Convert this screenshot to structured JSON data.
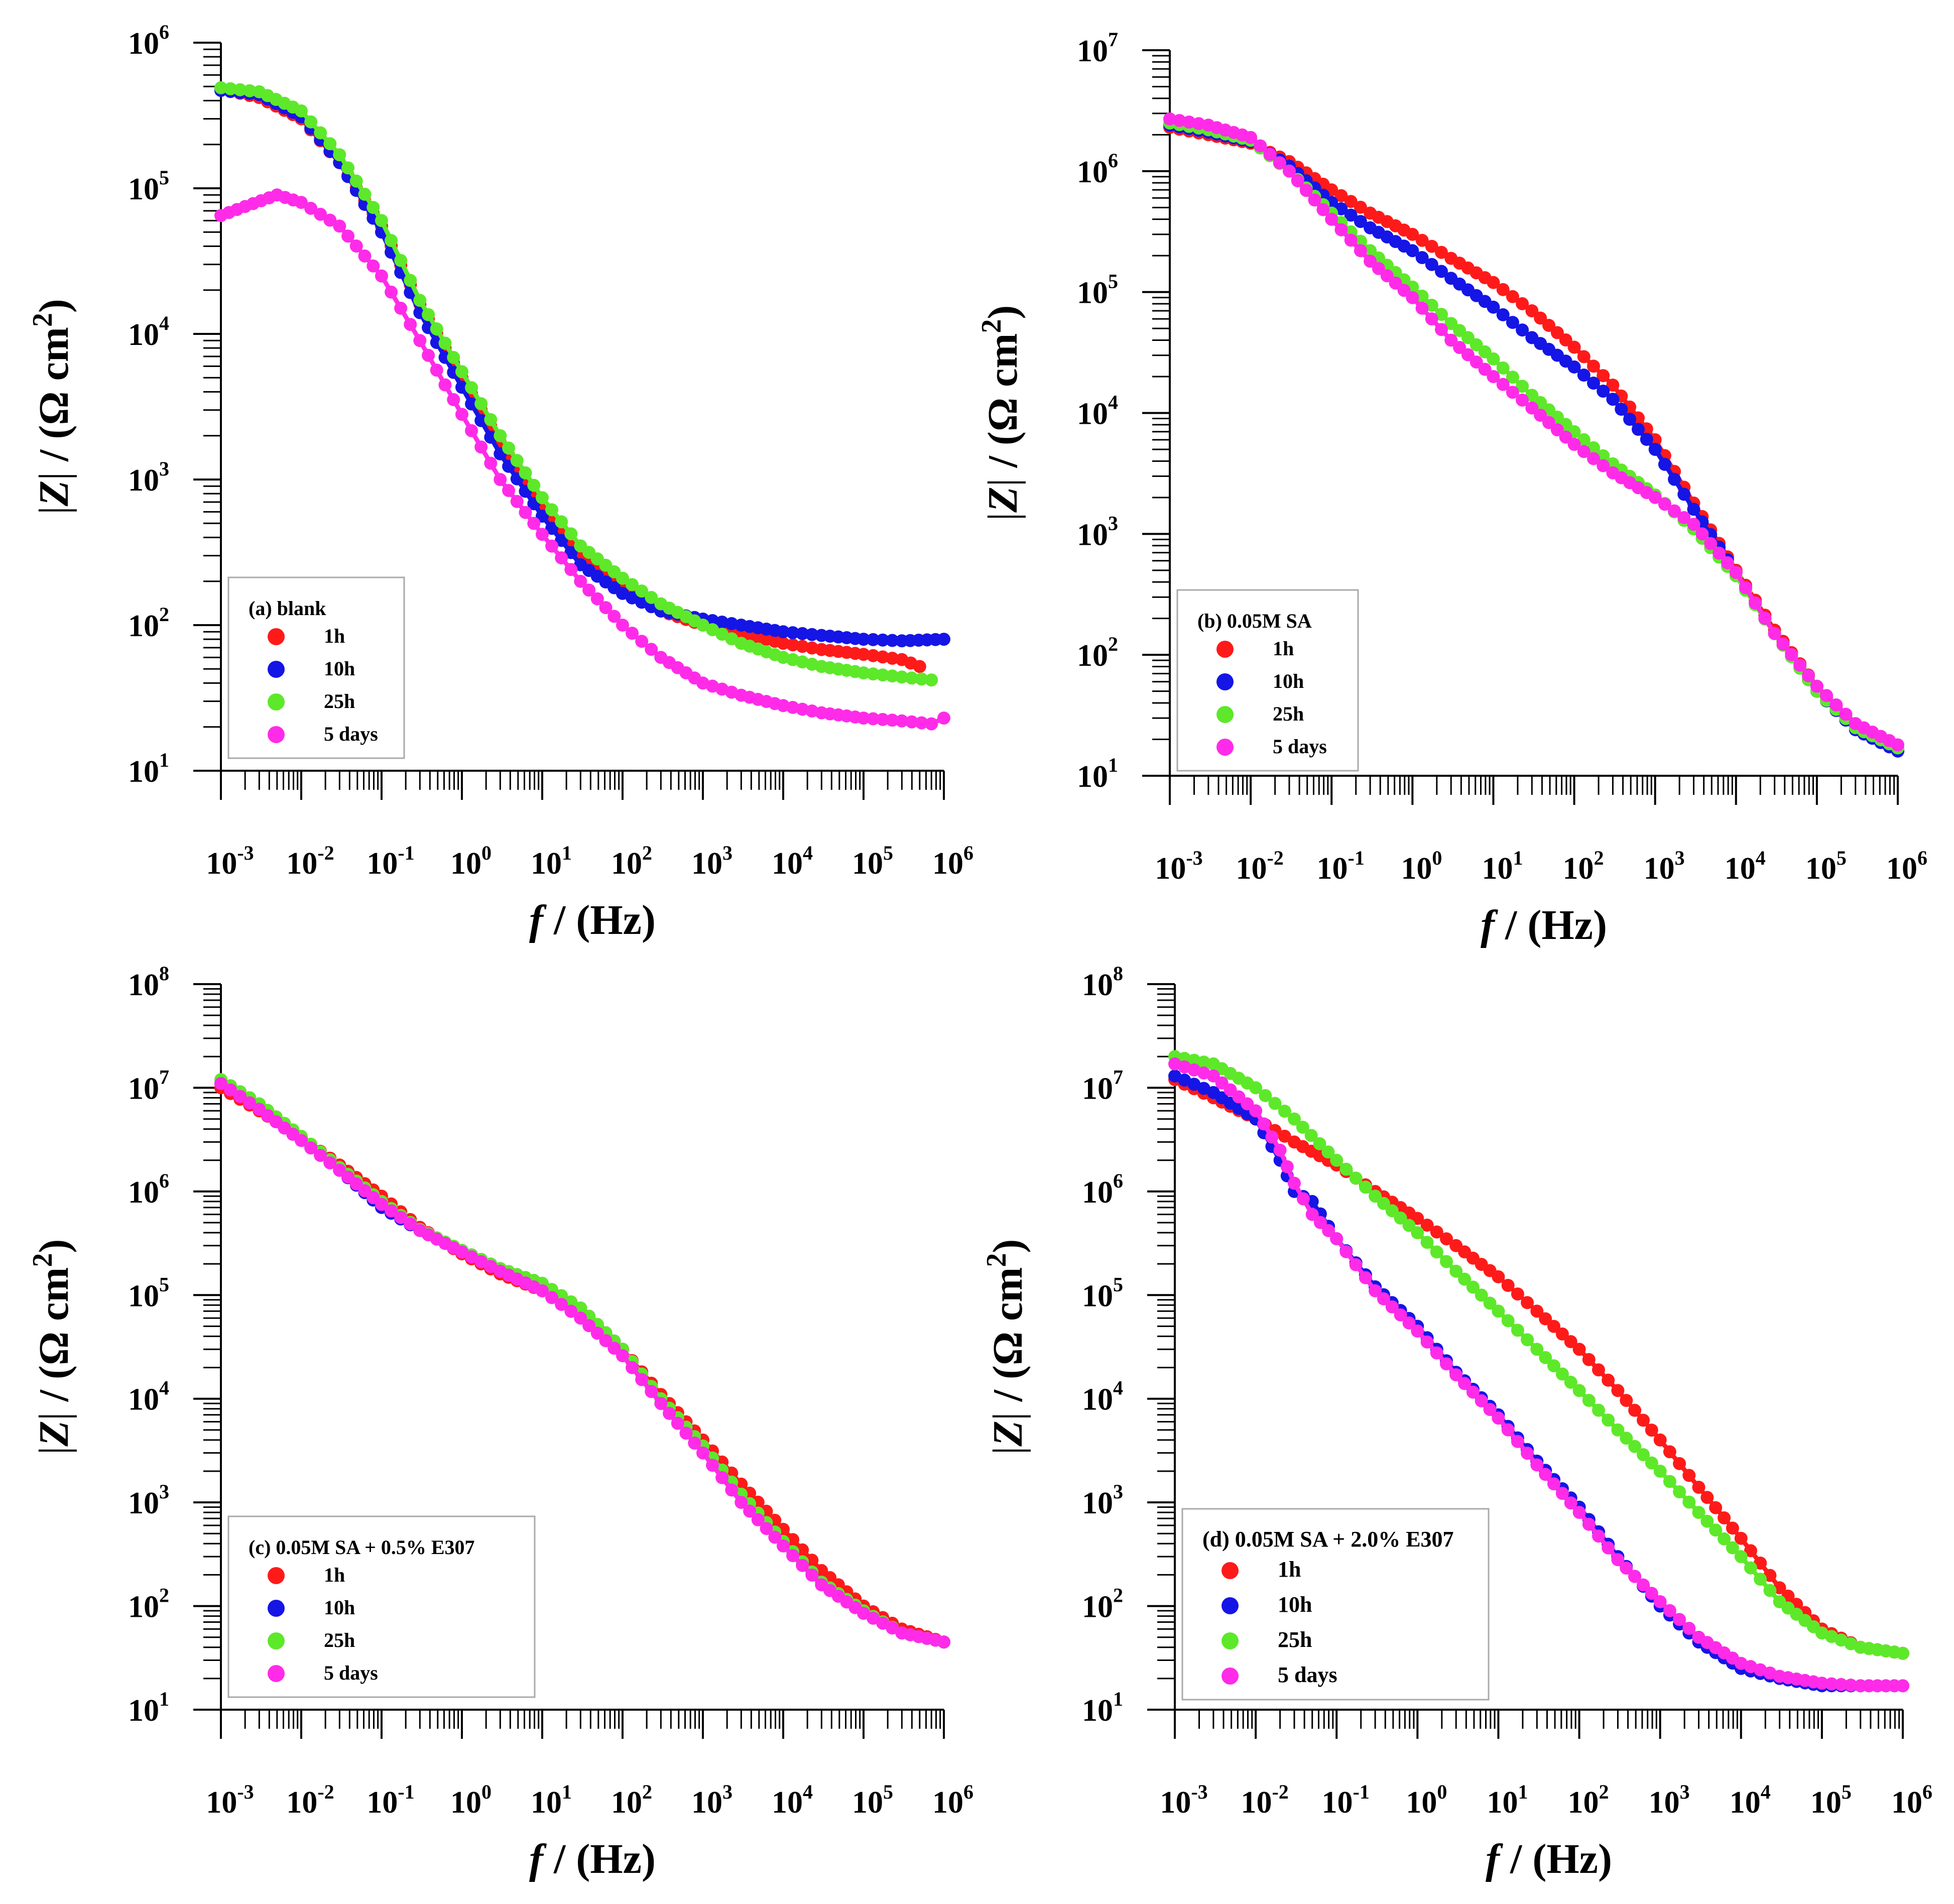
{
  "figure": {
    "colors": {
      "1h": "#ff1a1a",
      "10h": "#1515e6",
      "25h": "#5ee82a",
      "5 days": "#ff2be8"
    }
  },
  "chart_data": [
    {
      "id": "a",
      "type": "scatter",
      "xscale": "log",
      "yscale": "log",
      "xlim": [
        0.001,
        1000000
      ],
      "ylim": [
        10,
        1000000
      ],
      "xlabel_italic": "f",
      "xlabel_rest": " / (Hz)",
      "ylabel_mid": " / (Ω cm",
      "xtick_exponents": [
        "-3",
        "-2",
        "-1",
        "0",
        "1",
        "2",
        "3",
        "4",
        "5",
        "6"
      ],
      "ytick_exponents": [
        "1",
        "2",
        "3",
        "4",
        "5",
        "6"
      ],
      "legend": {
        "title": "(a) blank",
        "entries": [
          "1h",
          "10h",
          "25h",
          "5 days"
        ]
      },
      "series": [
        {
          "name": "1h",
          "x": [
            0.001,
            0.003,
            0.01,
            0.03,
            0.1,
            0.3,
            1,
            3,
            10,
            30,
            100,
            300,
            1000,
            3000,
            10000,
            30000,
            100000,
            300000,
            500000
          ],
          "y": [
            480000,
            420000,
            300000,
            150000,
            55000,
            16000,
            5000,
            1800,
            650,
            300,
            175,
            125,
            100,
            88,
            75,
            68,
            63,
            58,
            52
          ]
        },
        {
          "name": "10h",
          "x": [
            0.001,
            0.003,
            0.01,
            0.03,
            0.1,
            0.3,
            1,
            3,
            10,
            30,
            100,
            300,
            1000,
            3000,
            10000,
            30000,
            100000,
            300000,
            1000000
          ],
          "y": [
            470000,
            440000,
            310000,
            150000,
            50000,
            14000,
            4300,
            1500,
            560,
            260,
            165,
            125,
            110,
            100,
            90,
            85,
            80,
            78,
            80
          ]
        },
        {
          "name": "25h",
          "x": [
            0.001,
            0.003,
            0.01,
            0.03,
            0.1,
            0.3,
            1,
            3,
            10,
            30,
            100,
            300,
            1000,
            3000,
            10000,
            30000,
            100000,
            300000,
            700000
          ],
          "y": [
            490000,
            460000,
            340000,
            170000,
            60000,
            17000,
            5500,
            2000,
            750,
            350,
            210,
            140,
            100,
            75,
            60,
            52,
            47,
            44,
            42
          ]
        },
        {
          "name": "5 days",
          "x": [
            0.001,
            0.002,
            0.005,
            0.01,
            0.03,
            0.1,
            0.3,
            1,
            3,
            10,
            30,
            100,
            300,
            1000,
            3000,
            10000,
            30000,
            100000,
            300000,
            700000,
            1000000
          ],
          "y": [
            65000,
            75000,
            90000,
            80000,
            55000,
            25000,
            9000,
            2800,
            1000,
            420,
            200,
            100,
            60,
            40,
            33,
            28,
            25,
            23,
            22,
            21,
            23
          ]
        }
      ]
    },
    {
      "id": "b",
      "type": "scatter",
      "xscale": "log",
      "yscale": "log",
      "xlim": [
        0.001,
        1000000
      ],
      "ylim": [
        10,
        10000000
      ],
      "xlabel_italic": "f",
      "xlabel_rest": " / (Hz)",
      "ylabel_mid": " / (Ω cm",
      "xtick_exponents": [
        "-3",
        "-2",
        "-1",
        "0",
        "1",
        "2",
        "3",
        "4",
        "5",
        "6"
      ],
      "ytick_exponents": [
        "1",
        "2",
        "3",
        "4",
        "5",
        "6",
        "7"
      ],
      "legend": {
        "title": "(b) 0.05M SA",
        "entries": [
          "1h",
          "10h",
          "25h",
          "5 days"
        ]
      },
      "series": [
        {
          "name": "1h",
          "x": [
            0.001,
            0.003,
            0.01,
            0.03,
            0.1,
            0.3,
            1,
            3,
            10,
            30,
            100,
            300,
            1000,
            3000,
            10000,
            30000,
            100000,
            300000,
            1000000
          ],
          "y": [
            2300000,
            2000000,
            1700000,
            1200000,
            700000,
            450000,
            300000,
            190000,
            120000,
            70000,
            35000,
            17000,
            6000,
            1800,
            500,
            160,
            55,
            25,
            16
          ]
        },
        {
          "name": "10h",
          "x": [
            0.001,
            0.003,
            0.01,
            0.03,
            0.1,
            0.3,
            1,
            3,
            10,
            30,
            100,
            300,
            1000,
            3000,
            10000,
            30000,
            100000,
            300000,
            1000000
          ],
          "y": [
            2400000,
            2100000,
            1750000,
            1100000,
            550000,
            340000,
            220000,
            130000,
            75000,
            42000,
            24000,
            13000,
            5000,
            1600,
            480,
            150,
            50,
            24,
            16
          ]
        },
        {
          "name": "25h",
          "x": [
            0.001,
            0.003,
            0.01,
            0.03,
            0.1,
            0.3,
            1,
            3,
            10,
            30,
            100,
            300,
            1000,
            3000,
            10000,
            30000,
            100000,
            300000,
            1000000
          ],
          "y": [
            2500000,
            2200000,
            1800000,
            1000000,
            450000,
            220000,
            110000,
            55000,
            28000,
            14000,
            7000,
            3800,
            2100,
            1100,
            450,
            150,
            50,
            25,
            17
          ]
        },
        {
          "name": "5 days",
          "x": [
            0.001,
            0.003,
            0.01,
            0.03,
            0.1,
            0.3,
            1,
            3,
            10,
            30,
            100,
            300,
            1000,
            3000,
            10000,
            30000,
            100000,
            300000,
            1000000
          ],
          "y": [
            2700000,
            2400000,
            1900000,
            1000000,
            400000,
            180000,
            90000,
            40000,
            20000,
            11000,
            5500,
            3200,
            2000,
            1200,
            480,
            150,
            55,
            27,
            18
          ]
        }
      ]
    },
    {
      "id": "c",
      "type": "scatter",
      "xscale": "log",
      "yscale": "log",
      "xlim": [
        0.001,
        1000000
      ],
      "ylim": [
        10,
        100000000
      ],
      "xlabel_italic": "f",
      "xlabel_rest": " / (Hz)",
      "ylabel_mid": " / (Ω cm",
      "xtick_exponents": [
        "-3",
        "-2",
        "-1",
        "0",
        "1",
        "2",
        "3",
        "4",
        "5",
        "6"
      ],
      "ytick_exponents": [
        "1",
        "2",
        "3",
        "4",
        "5",
        "6",
        "7",
        "8"
      ],
      "legend": {
        "title": "(c) 0.05M SA + 0.5% E307",
        "entries": [
          "1h",
          "10h",
          "25h",
          "5 days"
        ]
      },
      "series": [
        {
          "name": "1h",
          "x": [
            0.001,
            0.003,
            0.01,
            0.03,
            0.1,
            0.3,
            1,
            3,
            10,
            30,
            100,
            300,
            1000,
            3000,
            10000,
            30000,
            100000,
            300000,
            1000000
          ],
          "y": [
            10000000,
            6000000,
            3300000,
            1800000,
            900000,
            450000,
            250000,
            160000,
            110000,
            70000,
            30000,
            11000,
            4000,
            1500,
            550,
            220,
            100,
            60,
            45
          ]
        },
        {
          "name": "10h",
          "x": [
            0.001,
            0.003,
            0.01,
            0.03,
            0.1,
            0.3,
            1,
            3,
            10,
            30,
            100,
            300,
            1000,
            3000,
            10000,
            30000,
            100000,
            300000,
            1000000
          ],
          "y": [
            11000000,
            6500000,
            3200000,
            1600000,
            700000,
            420000,
            270000,
            180000,
            120000,
            75000,
            30000,
            10000,
            3500,
            1200,
            420,
            170,
            90,
            55,
            45
          ]
        },
        {
          "name": "25h",
          "x": [
            0.001,
            0.003,
            0.01,
            0.03,
            0.1,
            0.3,
            1,
            3,
            10,
            30,
            100,
            300,
            1000,
            3000,
            10000,
            30000,
            100000,
            300000,
            1000000
          ],
          "y": [
            12000000,
            7000000,
            3400000,
            1700000,
            800000,
            430000,
            270000,
            180000,
            130000,
            75000,
            30000,
            10000,
            3500,
            1200,
            420,
            170,
            90,
            55,
            45
          ]
        },
        {
          "name": "5 days",
          "x": [
            0.001,
            0.003,
            0.01,
            0.03,
            0.1,
            0.3,
            1,
            3,
            10,
            30,
            100,
            300,
            1000,
            3000,
            10000,
            30000,
            100000,
            300000,
            1000000
          ],
          "y": [
            11000000,
            6200000,
            3100000,
            1600000,
            750000,
            420000,
            260000,
            170000,
            110000,
            60000,
            26000,
            9000,
            3000,
            1000,
            380,
            160,
            85,
            55,
            45
          ]
        }
      ]
    },
    {
      "id": "d",
      "type": "scatter",
      "xscale": "log",
      "yscale": "log",
      "xlim": [
        0.001,
        1000000
      ],
      "ylim": [
        10,
        100000000
      ],
      "xlabel_italic": "f",
      "xlabel_rest": " / (Hz)",
      "ylabel_mid": " / (Ω cm",
      "xtick_exponents": [
        "-3",
        "-2",
        "-1",
        "0",
        "1",
        "2",
        "3",
        "4",
        "5",
        "6"
      ],
      "ytick_exponents": [
        "1",
        "2",
        "3",
        "4",
        "5",
        "6",
        "7",
        "8"
      ],
      "legend": {
        "title": "(d) 0.05M SA + 2.0% E307",
        "entries": [
          "1h",
          "10h",
          "25h",
          "5 days"
        ]
      },
      "series": [
        {
          "name": "1h",
          "x": [
            0.001,
            0.003,
            0.01,
            0.03,
            0.1,
            0.3,
            1,
            3,
            10,
            30,
            100,
            300,
            1000,
            3000,
            10000,
            30000,
            100000,
            300000,
            1000000
          ],
          "y": [
            12000000,
            8000000,
            5000000,
            3000000,
            1800000,
            1000000,
            550000,
            300000,
            150000,
            70000,
            30000,
            12000,
            4000,
            1400,
            450,
            150,
            60,
            40,
            35
          ]
        },
        {
          "name": "10h",
          "x": [
            0.001,
            0.003,
            0.01,
            0.02,
            0.03,
            0.05,
            0.1,
            0.3,
            1,
            3,
            10,
            30,
            100,
            300,
            1000,
            3000,
            10000,
            30000,
            100000,
            300000,
            1000000
          ],
          "y": [
            13000000,
            9000000,
            5000000,
            2000000,
            1000000,
            800000,
            350000,
            120000,
            50000,
            18000,
            7000,
            2500,
            900,
            300,
            100,
            45,
            25,
            20,
            17,
            17,
            17
          ]
        },
        {
          "name": "25h",
          "x": [
            0.001,
            0.003,
            0.01,
            0.03,
            0.1,
            0.3,
            1,
            3,
            10,
            30,
            100,
            300,
            1000,
            3000,
            10000,
            30000,
            100000,
            300000,
            1000000
          ],
          "y": [
            20000000,
            17000000,
            10000000,
            5000000,
            2000000,
            900000,
            400000,
            170000,
            70000,
            30000,
            12000,
            5000,
            2000,
            800,
            300,
            110,
            55,
            40,
            35
          ]
        },
        {
          "name": "5 days",
          "x": [
            0.001,
            0.003,
            0.01,
            0.02,
            0.03,
            0.05,
            0.1,
            0.3,
            1,
            3,
            10,
            30,
            100,
            300,
            1000,
            3000,
            10000,
            30000,
            100000,
            300000,
            1000000
          ],
          "y": [
            17000000,
            13000000,
            6000000,
            2500000,
            1200000,
            600000,
            350000,
            110000,
            45000,
            17000,
            6500,
            2300,
            800,
            280,
            110,
            50,
            28,
            21,
            18,
            17,
            17
          ]
        }
      ]
    }
  ]
}
